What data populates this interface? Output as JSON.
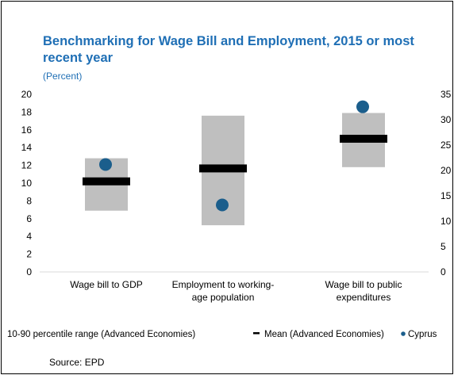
{
  "chart_data": {
    "type": "box-range",
    "title": "Benchmarking for Wage Bill and Employment, 2015 or most recent year",
    "subtitle": "(Percent)",
    "categories": [
      "Wage bill to GDP",
      "Employment to working-age population",
      "Wage bill to public expenditures"
    ],
    "category_lines": [
      [
        "Wage bill to GDP"
      ],
      [
        "Employment to working-",
        "age population"
      ],
      [
        "Wage bill to public",
        "expenditures"
      ]
    ],
    "axis_assignment": [
      "left",
      "right",
      "left"
    ],
    "left_axis": {
      "ylim": [
        0,
        20
      ],
      "ticks": [
        0,
        2,
        4,
        6,
        8,
        10,
        12,
        14,
        16,
        18,
        20
      ]
    },
    "right_axis": {
      "ylim": [
        0,
        35
      ],
      "ticks": [
        0,
        5,
        10,
        15,
        20,
        25,
        30,
        35
      ]
    },
    "series": [
      {
        "name": "10-90 percentile range (Advanced Economies)",
        "ranges": [
          [
            6.9,
            12.8
          ],
          [
            9.2,
            30.8
          ],
          [
            11.8,
            17.9
          ]
        ],
        "color": "#bfbfbf"
      },
      {
        "name": "Mean (Advanced Economies)",
        "values": [
          10.2,
          20.4,
          15.0
        ],
        "color": "#000000"
      },
      {
        "name": "Cyprus",
        "values": [
          12.1,
          13.2,
          18.6
        ],
        "color": "#1b5e8c"
      }
    ],
    "legend_position": "bottom",
    "source": "Source: EPD"
  }
}
